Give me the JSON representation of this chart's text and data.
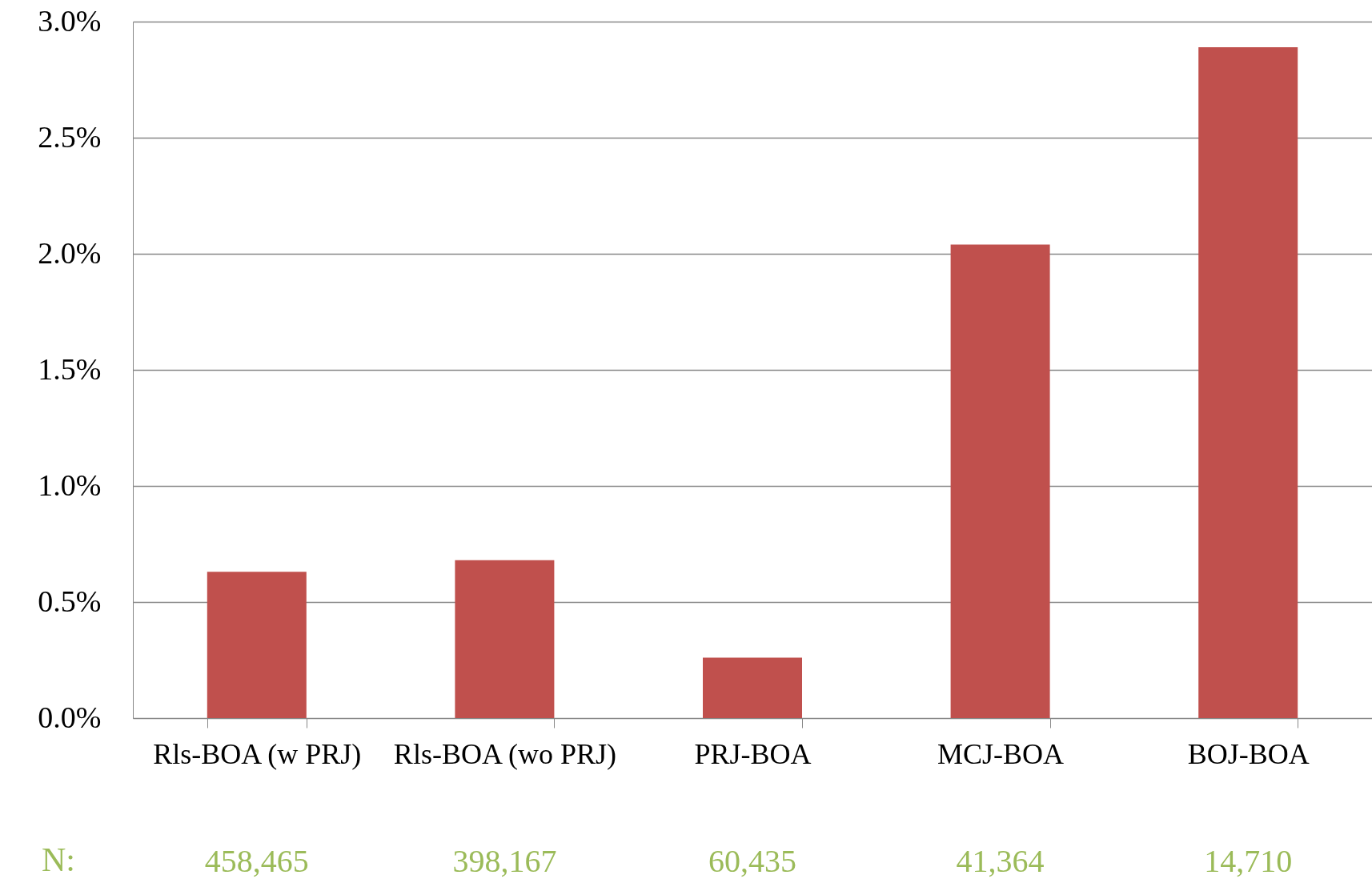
{
  "chart_data": {
    "type": "bar",
    "categories": [
      "Rls-BOA (w PRJ)",
      "Rls-BOA (wo PRJ)",
      "PRJ-BOA",
      "MCJ-BOA",
      "BOJ-BOA"
    ],
    "values": [
      0.63,
      0.68,
      0.26,
      2.04,
      2.89
    ],
    "color": "#c0504d",
    "ylim": [
      0,
      3
    ],
    "yticks": [
      {
        "value": 0,
        "label": "0.0%"
      },
      {
        "value": 0.5,
        "label": "0.5%"
      },
      {
        "value": 1,
        "label": "1.0%"
      },
      {
        "value": 1.5,
        "label": "1.5%"
      },
      {
        "value": 2,
        "label": "2.0%"
      },
      {
        "value": 2.5,
        "label": "2.5%"
      },
      {
        "value": 3,
        "label": "3.0%"
      }
    ],
    "grid": "y",
    "annotations": [
      "N:",
      "458,465",
      "398,167",
      "60,435",
      "41,364",
      "14,710"
    ]
  }
}
